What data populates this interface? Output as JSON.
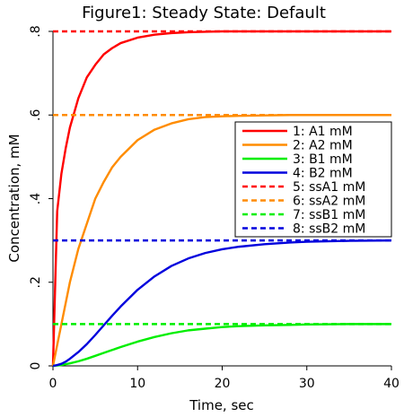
{
  "chart_data": {
    "type": "line",
    "title": "Figure1: Steady State: Default",
    "xlabel": "Time, sec",
    "ylabel": "Concentration, mM",
    "xlim": [
      0,
      40
    ],
    "ylim": [
      0,
      0.8
    ],
    "x_ticks": [
      0,
      10,
      20,
      30,
      40
    ],
    "x_tick_labels": [
      "0",
      "10",
      "20",
      "30",
      "40"
    ],
    "y_ticks": [
      0,
      0.2,
      0.4,
      0.6,
      0.8
    ],
    "y_tick_labels": [
      "0",
      ".2",
      ".4",
      ".6",
      ".8"
    ],
    "grid": false,
    "legend_position": "right",
    "x": [
      0,
      0.5,
      1,
      1.5,
      2,
      3,
      4,
      5,
      6,
      7,
      8,
      10,
      12,
      14,
      16,
      18,
      20,
      22,
      25,
      28,
      30,
      35,
      40
    ],
    "series": [
      {
        "name": "1: A1 mM",
        "color": "#ff0000",
        "dash": "solid",
        "values": [
          0,
          0.37,
          0.46,
          0.52,
          0.57,
          0.64,
          0.69,
          0.72,
          0.745,
          0.76,
          0.772,
          0.785,
          0.792,
          0.796,
          0.798,
          0.799,
          0.8,
          0.8,
          0.8,
          0.8,
          0.8,
          0.8,
          0.8
        ]
      },
      {
        "name": "2: A2 mM",
        "color": "#ff8c00",
        "dash": "solid",
        "values": [
          0,
          0.05,
          0.1,
          0.15,
          0.2,
          0.28,
          0.34,
          0.4,
          0.44,
          0.475,
          0.5,
          0.54,
          0.565,
          0.58,
          0.59,
          0.595,
          0.597,
          0.598,
          0.599,
          0.6,
          0.6,
          0.6,
          0.6
        ]
      },
      {
        "name": "3: B1 mM",
        "color": "#00ee00",
        "dash": "solid",
        "values": [
          0,
          0.001,
          0.002,
          0.004,
          0.006,
          0.011,
          0.017,
          0.024,
          0.031,
          0.038,
          0.045,
          0.058,
          0.069,
          0.078,
          0.085,
          0.089,
          0.093,
          0.095,
          0.097,
          0.098,
          0.099,
          0.1,
          0.1
        ]
      },
      {
        "name": "4: B2 mM",
        "color": "#0000dd",
        "dash": "solid",
        "values": [
          0,
          0.002,
          0.005,
          0.01,
          0.017,
          0.033,
          0.052,
          0.074,
          0.097,
          0.12,
          0.142,
          0.182,
          0.214,
          0.239,
          0.257,
          0.27,
          0.279,
          0.285,
          0.291,
          0.295,
          0.297,
          0.299,
          0.3
        ]
      },
      {
        "name": "5: ssA1 mM",
        "color": "#ff0000",
        "dash": "dashed",
        "values": [
          0.8,
          0.8,
          0.8,
          0.8,
          0.8,
          0.8,
          0.8,
          0.8,
          0.8,
          0.8,
          0.8,
          0.8,
          0.8,
          0.8,
          0.8,
          0.8,
          0.8,
          0.8,
          0.8,
          0.8,
          0.8,
          0.8,
          0.8
        ]
      },
      {
        "name": "6: ssA2 mM",
        "color": "#ff8c00",
        "dash": "dashed",
        "values": [
          0.6,
          0.6,
          0.6,
          0.6,
          0.6,
          0.6,
          0.6,
          0.6,
          0.6,
          0.6,
          0.6,
          0.6,
          0.6,
          0.6,
          0.6,
          0.6,
          0.6,
          0.6,
          0.6,
          0.6,
          0.6,
          0.6,
          0.6
        ]
      },
      {
        "name": "7: ssB1 mM",
        "color": "#00ee00",
        "dash": "dashed",
        "values": [
          0.1,
          0.1,
          0.1,
          0.1,
          0.1,
          0.1,
          0.1,
          0.1,
          0.1,
          0.1,
          0.1,
          0.1,
          0.1,
          0.1,
          0.1,
          0.1,
          0.1,
          0.1,
          0.1,
          0.1,
          0.1,
          0.1,
          0.1
        ]
      },
      {
        "name": "8: ssB2 mM",
        "color": "#0000dd",
        "dash": "dashed",
        "values": [
          0.3,
          0.3,
          0.3,
          0.3,
          0.3,
          0.3,
          0.3,
          0.3,
          0.3,
          0.3,
          0.3,
          0.3,
          0.3,
          0.3,
          0.3,
          0.3,
          0.3,
          0.3,
          0.3,
          0.3,
          0.3,
          0.3,
          0.3
        ]
      }
    ]
  }
}
